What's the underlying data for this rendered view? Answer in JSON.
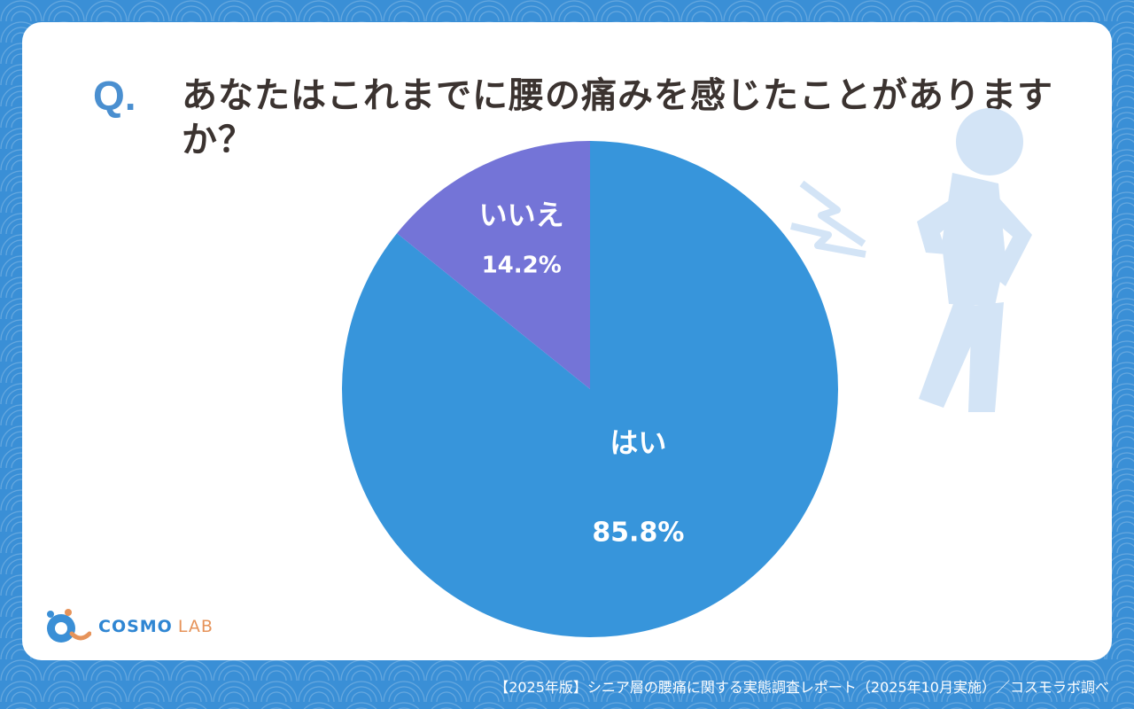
{
  "card": {
    "q_mark": "Q.",
    "question": "あなたはこれまでに腰の痛みを感じたことがありますか？"
  },
  "chart_data": {
    "type": "pie",
    "title": "あなたはこれまでに腰の痛みを感じたことがありますか？",
    "slices": [
      {
        "label": "はい",
        "value": 85.8,
        "value_label": "85.8%",
        "color": "#3795db"
      },
      {
        "label": "いいえ",
        "value": 14.2,
        "value_label": "14.2%",
        "color": "#7474d7"
      }
    ],
    "start": "12 o'clock",
    "direction": "clockwise"
  },
  "logo": {
    "cosmo": "COSMO",
    "lab": "LAB"
  },
  "footer": {
    "text": "【2025年版】シニア層の腰痛に関する実態調査レポート（2025年10月実施）／コスモラボ調べ"
  },
  "colors": {
    "background": "#3a8fd6",
    "card": "#ffffff",
    "figure": "#d3e4f6",
    "q_mark": "#4a8fd0"
  },
  "icons": [
    "back-pain-figure-icon",
    "pain-lightning-icon",
    "cosmo-lab-logo-icon"
  ]
}
